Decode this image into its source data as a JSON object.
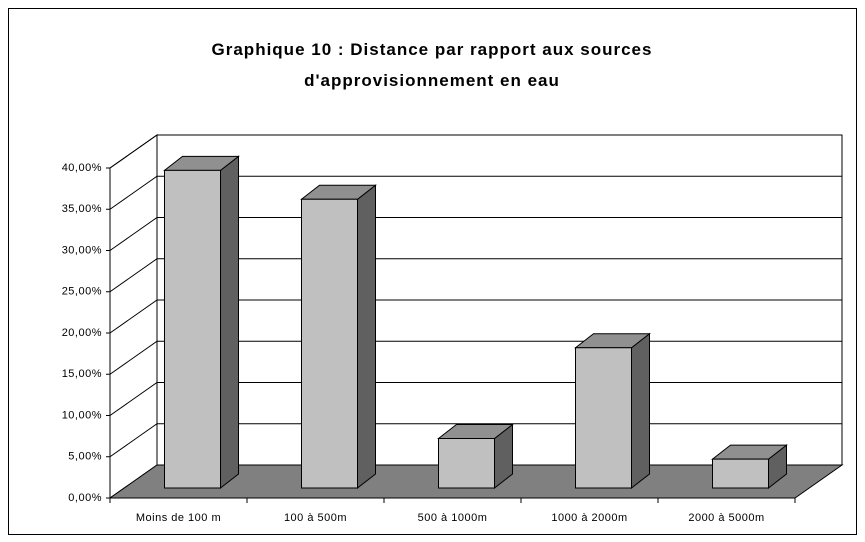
{
  "chart_data": {
    "type": "bar3d",
    "title": "Graphique 10 : Distance par rapport aux sources d'approvisionnement en eau",
    "categories": [
      "Moins de 100 m",
      "100 à 500m",
      "500 à 1000m",
      "1000 à 2000m",
      "2000 à 5000m"
    ],
    "values": [
      38.5,
      35,
      6,
      17,
      3.5
    ],
    "color": "#c0c0c0",
    "ylim": [
      0,
      40
    ],
    "yticks": [
      {
        "value": 0,
        "label": "0,00%"
      },
      {
        "value": 5,
        "label": "5,00%"
      },
      {
        "value": 10,
        "label": "10,00%"
      },
      {
        "value": 15,
        "label": "15,00%"
      },
      {
        "value": 20,
        "label": "20,00%"
      },
      {
        "value": 25,
        "label": "25,00%"
      },
      {
        "value": 30,
        "label": "30,00%"
      },
      {
        "value": 35,
        "label": "35,00%"
      },
      {
        "value": 40,
        "label": "40,00%"
      }
    ],
    "grid": true
  }
}
